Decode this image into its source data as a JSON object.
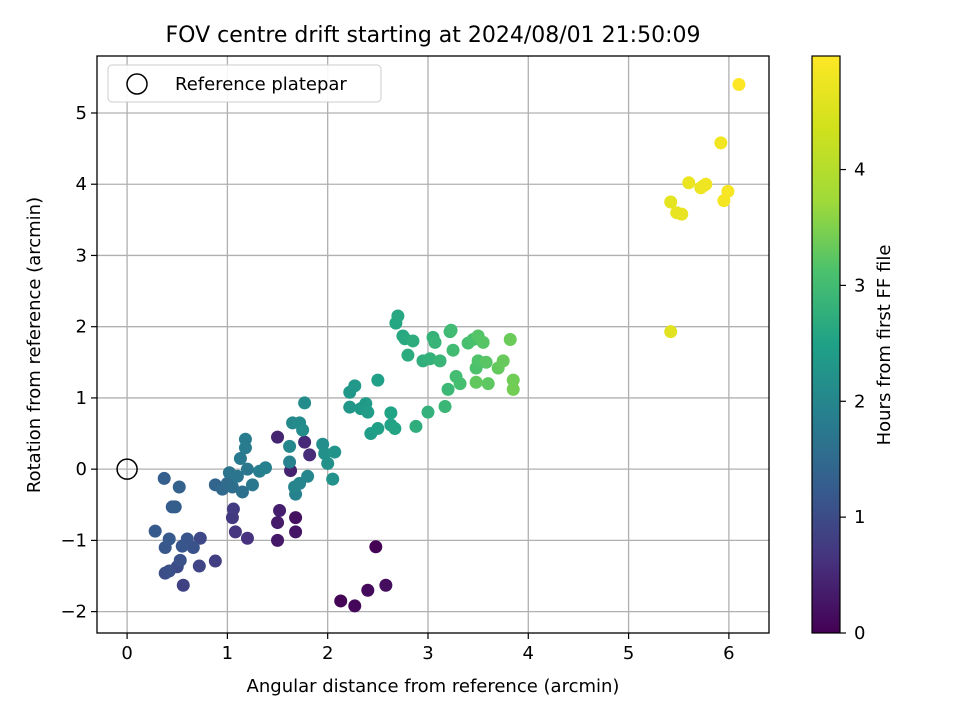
{
  "chart_data": {
    "type": "scatter",
    "title": "FOV centre drift starting at 2024/08/01 21:50:09",
    "xlabel": "Angular distance from reference (arcmin)",
    "ylabel": "Rotation from reference (arcmin)",
    "xlim": [
      -0.3,
      6.4
    ],
    "ylim": [
      -2.3,
      5.8
    ],
    "xticks": [
      "0",
      "1",
      "2",
      "3",
      "4",
      "5",
      "6"
    ],
    "yticks": [
      "−2",
      "−1",
      "0",
      "1",
      "2",
      "3",
      "4",
      "5"
    ],
    "grid": true,
    "legend": {
      "placement": "top-left",
      "entries": [
        "Reference platepar"
      ]
    },
    "reference_point": {
      "x": 0,
      "y": 0
    },
    "colorbar": {
      "label": "Hours from first FF file",
      "range": [
        0,
        4.98
      ],
      "ticks": [
        "0",
        "1",
        "2",
        "3",
        "4"
      ],
      "colormap": "viridis"
    },
    "points": [
      {
        "x": 2.48,
        "y": -1.09,
        "h": 0.02
      },
      {
        "x": 2.13,
        "y": -1.85,
        "h": 0.05
      },
      {
        "x": 2.27,
        "y": -1.92,
        "h": 0.08
      },
      {
        "x": 2.4,
        "y": -1.7,
        "h": 0.12
      },
      {
        "x": 2.58,
        "y": -1.63,
        "h": 0.15
      },
      {
        "x": 1.68,
        "y": -0.68,
        "h": 0.2
      },
      {
        "x": 1.68,
        "y": -0.88,
        "h": 0.25
      },
      {
        "x": 1.5,
        "y": -1.0,
        "h": 0.3
      },
      {
        "x": 1.5,
        "y": -0.75,
        "h": 0.33
      },
      {
        "x": 1.52,
        "y": -0.58,
        "h": 0.38
      },
      {
        "x": 1.63,
        "y": -0.02,
        "h": 0.42
      },
      {
        "x": 1.5,
        "y": 0.45,
        "h": 0.45
      },
      {
        "x": 1.77,
        "y": 0.38,
        "h": 0.5
      },
      {
        "x": 1.82,
        "y": 0.2,
        "h": 0.55
      },
      {
        "x": 1.2,
        "y": -0.97,
        "h": 0.62
      },
      {
        "x": 1.08,
        "y": -0.88,
        "h": 0.68
      },
      {
        "x": 1.05,
        "y": -0.68,
        "h": 0.72
      },
      {
        "x": 1.06,
        "y": -0.56,
        "h": 0.75
      },
      {
        "x": 0.88,
        "y": -1.29,
        "h": 0.8
      },
      {
        "x": 0.56,
        "y": -1.63,
        "h": 0.85
      },
      {
        "x": 0.72,
        "y": -1.36,
        "h": 0.9
      },
      {
        "x": 0.73,
        "y": -0.97,
        "h": 0.95
      },
      {
        "x": 0.5,
        "y": -1.37,
        "h": 1.0
      },
      {
        "x": 0.38,
        "y": -1.46,
        "h": 1.02
      },
      {
        "x": 0.42,
        "y": -1.43,
        "h": 1.05
      },
      {
        "x": 0.53,
        "y": -1.28,
        "h": 1.08
      },
      {
        "x": 0.66,
        "y": -1.1,
        "h": 1.1
      },
      {
        "x": 0.6,
        "y": -0.98,
        "h": 1.12
      },
      {
        "x": 0.55,
        "y": -1.08,
        "h": 1.15
      },
      {
        "x": 0.38,
        "y": -1.1,
        "h": 1.18
      },
      {
        "x": 0.42,
        "y": -0.98,
        "h": 1.2
      },
      {
        "x": 0.28,
        "y": -0.87,
        "h": 1.22
      },
      {
        "x": 0.45,
        "y": -0.53,
        "h": 1.25
      },
      {
        "x": 0.48,
        "y": -0.53,
        "h": 1.28
      },
      {
        "x": 0.37,
        "y": -0.13,
        "h": 1.3
      },
      {
        "x": 0.52,
        "y": -0.25,
        "h": 1.35
      },
      {
        "x": 0.88,
        "y": -0.22,
        "h": 1.4
      },
      {
        "x": 0.95,
        "y": -0.28,
        "h": 1.45
      },
      {
        "x": 1.0,
        "y": -0.2,
        "h": 1.5
      },
      {
        "x": 1.05,
        "y": -0.25,
        "h": 1.55
      },
      {
        "x": 1.15,
        "y": -0.32,
        "h": 1.6
      },
      {
        "x": 1.02,
        "y": -0.05,
        "h": 1.65
      },
      {
        "x": 1.1,
        "y": -0.1,
        "h": 1.7
      },
      {
        "x": 1.2,
        "y": 0.0,
        "h": 1.72
      },
      {
        "x": 1.25,
        "y": -0.22,
        "h": 1.75
      },
      {
        "x": 1.13,
        "y": 0.15,
        "h": 1.78
      },
      {
        "x": 1.18,
        "y": 0.3,
        "h": 1.8
      },
      {
        "x": 1.18,
        "y": 0.42,
        "h": 1.82
      },
      {
        "x": 1.32,
        "y": -0.03,
        "h": 1.85
      },
      {
        "x": 1.38,
        "y": 0.02,
        "h": 1.88
      },
      {
        "x": 1.62,
        "y": 0.1,
        "h": 1.9
      },
      {
        "x": 1.68,
        "y": -0.35,
        "h": 1.92
      },
      {
        "x": 1.67,
        "y": -0.25,
        "h": 1.95
      },
      {
        "x": 1.72,
        "y": -0.2,
        "h": 1.98
      },
      {
        "x": 1.8,
        "y": -0.1,
        "h": 2.0
      },
      {
        "x": 1.62,
        "y": 0.32,
        "h": 2.02
      },
      {
        "x": 1.65,
        "y": 0.65,
        "h": 2.05
      },
      {
        "x": 1.72,
        "y": 0.65,
        "h": 2.08
      },
      {
        "x": 1.75,
        "y": 0.55,
        "h": 2.1
      },
      {
        "x": 1.77,
        "y": 0.93,
        "h": 2.12
      },
      {
        "x": 1.95,
        "y": 0.35,
        "h": 2.15
      },
      {
        "x": 1.97,
        "y": 0.22,
        "h": 2.18
      },
      {
        "x": 2.0,
        "y": 0.08,
        "h": 2.2
      },
      {
        "x": 2.05,
        "y": -0.14,
        "h": 2.22
      },
      {
        "x": 2.07,
        "y": 0.24,
        "h": 2.25
      },
      {
        "x": 2.22,
        "y": 0.87,
        "h": 2.28
      },
      {
        "x": 2.22,
        "y": 1.08,
        "h": 2.3
      },
      {
        "x": 2.27,
        "y": 1.17,
        "h": 2.32
      },
      {
        "x": 2.33,
        "y": 0.85,
        "h": 2.35
      },
      {
        "x": 2.38,
        "y": 0.92,
        "h": 2.38
      },
      {
        "x": 2.4,
        "y": 0.8,
        "h": 2.4
      },
      {
        "x": 2.43,
        "y": 0.5,
        "h": 2.42
      },
      {
        "x": 2.5,
        "y": 0.57,
        "h": 2.45
      },
      {
        "x": 2.5,
        "y": 1.25,
        "h": 2.48
      },
      {
        "x": 2.63,
        "y": 0.62,
        "h": 2.5
      },
      {
        "x": 2.63,
        "y": 0.79,
        "h": 2.52
      },
      {
        "x": 2.67,
        "y": 0.57,
        "h": 2.55
      },
      {
        "x": 2.68,
        "y": 2.05,
        "h": 2.58
      },
      {
        "x": 2.7,
        "y": 2.15,
        "h": 2.6
      },
      {
        "x": 2.75,
        "y": 1.87,
        "h": 2.62
      },
      {
        "x": 2.77,
        "y": 1.83,
        "h": 2.65
      },
      {
        "x": 2.8,
        "y": 1.6,
        "h": 2.68
      },
      {
        "x": 2.85,
        "y": 1.8,
        "h": 2.7
      },
      {
        "x": 2.88,
        "y": 0.6,
        "h": 2.72
      },
      {
        "x": 2.95,
        "y": 1.52,
        "h": 2.75
      },
      {
        "x": 3.0,
        "y": 0.8,
        "h": 2.78
      },
      {
        "x": 3.02,
        "y": 1.55,
        "h": 2.8
      },
      {
        "x": 3.05,
        "y": 1.85,
        "h": 2.82
      },
      {
        "x": 3.07,
        "y": 1.78,
        "h": 2.85
      },
      {
        "x": 3.12,
        "y": 1.52,
        "h": 2.88
      },
      {
        "x": 3.17,
        "y": 0.88,
        "h": 2.9
      },
      {
        "x": 3.2,
        "y": 1.12,
        "h": 2.92
      },
      {
        "x": 3.22,
        "y": 1.93,
        "h": 2.95
      },
      {
        "x": 3.23,
        "y": 1.95,
        "h": 2.98
      },
      {
        "x": 3.25,
        "y": 1.67,
        "h": 3.0
      },
      {
        "x": 3.28,
        "y": 1.3,
        "h": 3.02
      },
      {
        "x": 3.32,
        "y": 1.2,
        "h": 3.05
      },
      {
        "x": 3.4,
        "y": 1.77,
        "h": 3.08
      },
      {
        "x": 3.45,
        "y": 1.82,
        "h": 3.1
      },
      {
        "x": 3.48,
        "y": 1.42,
        "h": 3.12
      },
      {
        "x": 3.5,
        "y": 1.52,
        "h": 3.15
      },
      {
        "x": 3.5,
        "y": 1.87,
        "h": 3.18
      },
      {
        "x": 3.55,
        "y": 1.78,
        "h": 3.2
      },
      {
        "x": 3.58,
        "y": 1.5,
        "h": 3.22
      },
      {
        "x": 3.6,
        "y": 1.2,
        "h": 3.25
      },
      {
        "x": 3.48,
        "y": 1.22,
        "h": 3.28
      },
      {
        "x": 3.7,
        "y": 1.42,
        "h": 3.3
      },
      {
        "x": 3.75,
        "y": 1.52,
        "h": 3.32
      },
      {
        "x": 3.82,
        "y": 1.82,
        "h": 3.35
      },
      {
        "x": 3.85,
        "y": 1.25,
        "h": 3.38
      },
      {
        "x": 3.85,
        "y": 1.12,
        "h": 3.4
      },
      {
        "x": 5.42,
        "y": 1.93,
        "h": 4.6
      },
      {
        "x": 5.42,
        "y": 3.75,
        "h": 4.65
      },
      {
        "x": 5.48,
        "y": 3.6,
        "h": 4.68
      },
      {
        "x": 5.53,
        "y": 3.58,
        "h": 4.7
      },
      {
        "x": 5.6,
        "y": 4.02,
        "h": 4.72
      },
      {
        "x": 5.72,
        "y": 3.95,
        "h": 4.75
      },
      {
        "x": 5.75,
        "y": 3.98,
        "h": 4.78
      },
      {
        "x": 5.77,
        "y": 4.0,
        "h": 4.8
      },
      {
        "x": 5.92,
        "y": 4.58,
        "h": 4.83
      },
      {
        "x": 5.95,
        "y": 3.77,
        "h": 4.86
      },
      {
        "x": 5.99,
        "y": 3.9,
        "h": 4.9
      },
      {
        "x": 6.1,
        "y": 5.4,
        "h": 4.98
      }
    ]
  }
}
